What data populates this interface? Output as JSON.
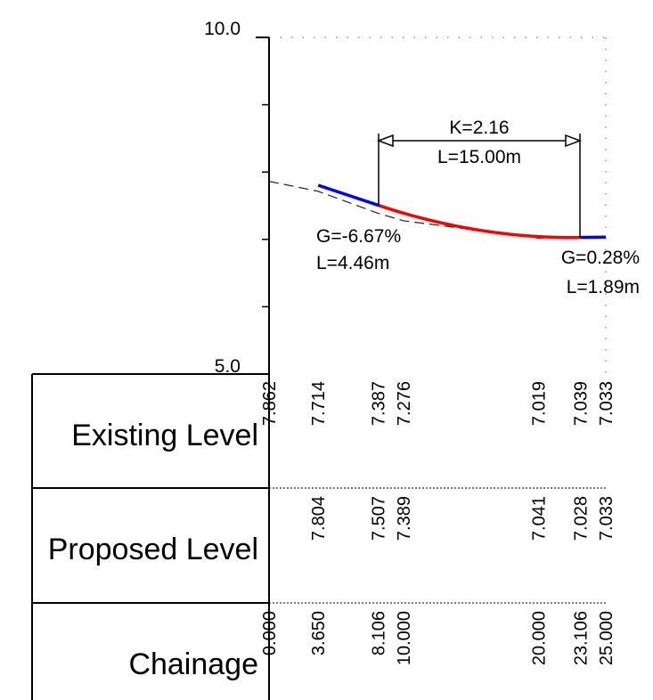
{
  "chart_data": {
    "type": "long-section",
    "y_axis": {
      "min": 5.0,
      "max": 10.0,
      "min_label": "5.0",
      "max_label": "10.0",
      "minor_ticks": [
        6.0,
        7.0,
        8.0,
        9.0
      ]
    },
    "chainage_range": [
      0,
      25
    ],
    "existing_surface": [
      {
        "chainage": 0.0,
        "level": 7.862
      },
      {
        "chainage": 3.65,
        "level": 7.714
      },
      {
        "chainage": 8.106,
        "level": 7.387
      },
      {
        "chainage": 10.0,
        "level": 7.276
      },
      {
        "chainage": 20.0,
        "level": 7.019
      },
      {
        "chainage": 23.106,
        "level": 7.039
      },
      {
        "chainage": 25.0,
        "level": 7.033
      }
    ],
    "proposed_tangent_in": {
      "start": [
        3.65,
        7.804
      ],
      "end": [
        8.106,
        7.507
      ],
      "color": "#0000ff"
    },
    "proposed_vertical_curve": {
      "start": [
        8.106,
        7.507
      ],
      "end": [
        23.106,
        7.028
      ],
      "g1_percent": -6.67,
      "g2_percent": 0.28,
      "color": "#ff0000"
    },
    "proposed_tangent_out": {
      "start": [
        23.106,
        7.028
      ],
      "end": [
        25.0,
        7.033
      ],
      "color": "#0000ff"
    },
    "annotations": {
      "curve_k": "K=2.16",
      "curve_l": "L=15.00m",
      "grade_in": "G=-6.67%",
      "length_in": "L=4.46m",
      "grade_out": "G=0.28%",
      "length_out": "L=1.89m"
    }
  },
  "table": {
    "rows": [
      {
        "label": "Existing Level",
        "entries": [
          {
            "chainage": 0.0,
            "text": "7.862"
          },
          {
            "chainage": 3.65,
            "text": "7.714"
          },
          {
            "chainage": 8.106,
            "text": "7.387"
          },
          {
            "chainage": 10.0,
            "text": "7.276"
          },
          {
            "chainage": 20.0,
            "text": "7.019"
          },
          {
            "chainage": 23.106,
            "text": "7.039"
          },
          {
            "chainage": 25.0,
            "text": "7.033"
          }
        ]
      },
      {
        "label": "Proposed Level",
        "entries": [
          {
            "chainage": 3.65,
            "text": "7.804"
          },
          {
            "chainage": 8.106,
            "text": "7.507"
          },
          {
            "chainage": 10.0,
            "text": "7.389"
          },
          {
            "chainage": 20.0,
            "text": "7.041"
          },
          {
            "chainage": 23.106,
            "text": "7.028"
          },
          {
            "chainage": 25.0,
            "text": "7.033"
          }
        ]
      },
      {
        "label": "Chainage",
        "entries": [
          {
            "chainage": 0.0,
            "text": "0.000"
          },
          {
            "chainage": 3.65,
            "text": "3.650"
          },
          {
            "chainage": 8.106,
            "text": "8.106"
          },
          {
            "chainage": 10.0,
            "text": "10.000"
          },
          {
            "chainage": 20.0,
            "text": "20.000"
          },
          {
            "chainage": 23.106,
            "text": "23.106"
          },
          {
            "chainage": 25.0,
            "text": "25.000"
          }
        ]
      }
    ]
  }
}
